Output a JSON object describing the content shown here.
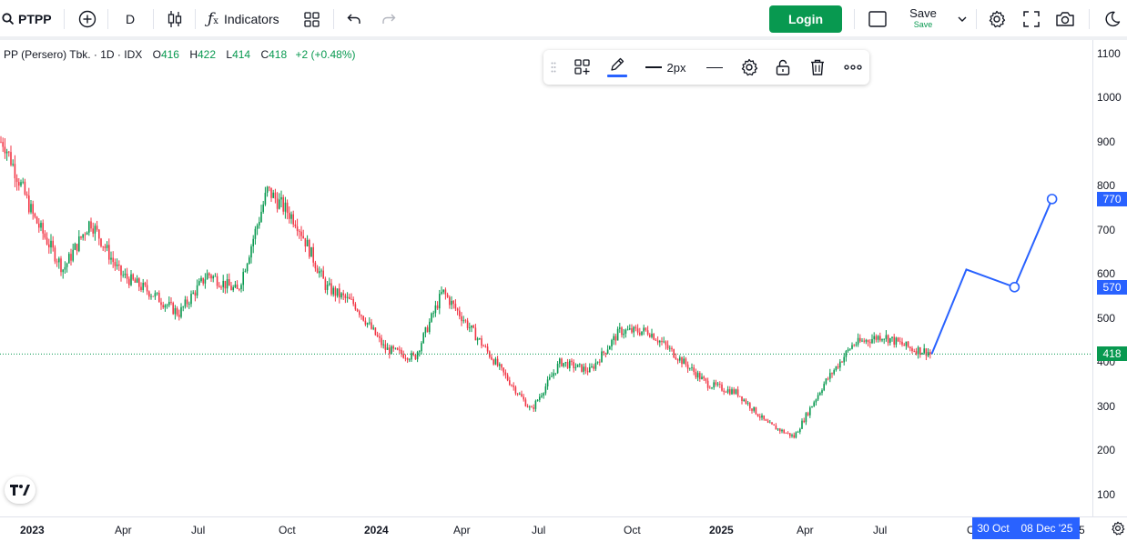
{
  "toolbar": {
    "symbol": "PTPP",
    "interval": "D",
    "indicators_label": "Indicators",
    "login_label": "Login",
    "save_label": "Save",
    "save_status": "Save"
  },
  "legend": {
    "name": "PP (Persero) Tbk. · 1D · IDX",
    "open_label": "O",
    "open": "416",
    "high_label": "H",
    "high": "422",
    "low_label": "L",
    "low": "414",
    "close_label": "C",
    "close": "418",
    "change": "+2 (+0.48%)"
  },
  "drawing_toolbar": {
    "width_label": "2px",
    "line_color": "#2962ff"
  },
  "price_axis": {
    "ticks": [
      "1100",
      "1000",
      "900",
      "800",
      "700",
      "600",
      "500",
      "400",
      "300",
      "200",
      "100"
    ],
    "badges": {
      "p770": "770",
      "p570": "570",
      "last": "418"
    }
  },
  "time_axis": {
    "ticks": [
      "2023",
      "Apr",
      "Jul",
      "Oct",
      "2024",
      "Apr",
      "Jul",
      "Oct",
      "2025",
      "Apr",
      "Jul",
      "Oct",
      "'25"
    ],
    "badge_start": "30 Oct",
    "badge_end": "08 Dec '25"
  },
  "chart_data": {
    "type": "candlestick",
    "symbol": "PTPP",
    "interval": "1D",
    "y_range": [
      100,
      1100
    ],
    "last_price": 418,
    "up_color": "#089950",
    "down_color": "#f23645",
    "approx_close_path": [
      {
        "date": "2022-12",
        "price": 900
      },
      {
        "date": "2023-01",
        "price": 730
      },
      {
        "date": "2023-02",
        "price": 610
      },
      {
        "date": "2023-03",
        "price": 720
      },
      {
        "date": "2023-04",
        "price": 600
      },
      {
        "date": "2023-05",
        "price": 560
      },
      {
        "date": "2023-06",
        "price": 510
      },
      {
        "date": "2023-07",
        "price": 600
      },
      {
        "date": "2023-08",
        "price": 560
      },
      {
        "date": "2023-09",
        "price": 790
      },
      {
        "date": "2023-10",
        "price": 720
      },
      {
        "date": "2023-11",
        "price": 570
      },
      {
        "date": "2023-12",
        "price": 530
      },
      {
        "date": "2024-01",
        "price": 430
      },
      {
        "date": "2024-02",
        "price": 410
      },
      {
        "date": "2024-03",
        "price": 560
      },
      {
        "date": "2024-04",
        "price": 470
      },
      {
        "date": "2024-05",
        "price": 380
      },
      {
        "date": "2024-06",
        "price": 290
      },
      {
        "date": "2024-07",
        "price": 400
      },
      {
        "date": "2024-08",
        "price": 380
      },
      {
        "date": "2024-09",
        "price": 470
      },
      {
        "date": "2024-10",
        "price": 470
      },
      {
        "date": "2024-11",
        "price": 410
      },
      {
        "date": "2024-12",
        "price": 350
      },
      {
        "date": "2025-01",
        "price": 330
      },
      {
        "date": "2025-02",
        "price": 260
      },
      {
        "date": "2025-03",
        "price": 230
      },
      {
        "date": "2025-04",
        "price": 350
      },
      {
        "date": "2025-05",
        "price": 440
      },
      {
        "date": "2025-06",
        "price": 460
      },
      {
        "date": "2025-07",
        "price": 430
      },
      {
        "date": "2025-08",
        "price": 418
      }
    ],
    "drawing_path": [
      {
        "date": "2025-08-05",
        "price": 418
      },
      {
        "date": "2025-09-10",
        "price": 610
      },
      {
        "date": "2025-10-30",
        "price": 570
      },
      {
        "date": "2025-12-08",
        "price": 770
      }
    ]
  }
}
